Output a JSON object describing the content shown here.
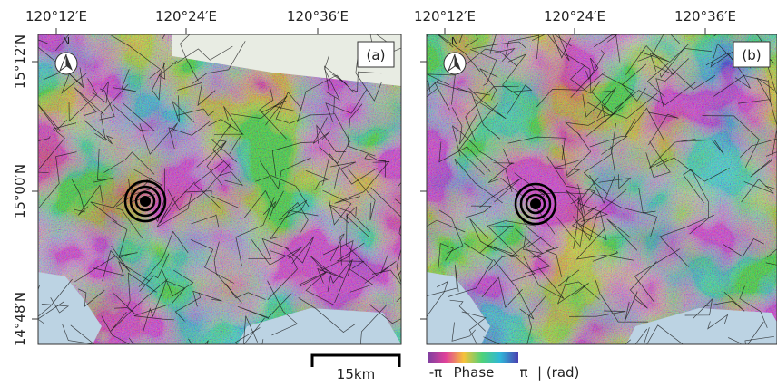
{
  "panels": [
    {
      "label": "(a)",
      "north": "N",
      "lon_labels": [
        "120°12′E",
        "120°24′E",
        "120°36′E"
      ],
      "lat_labels": [
        "15°12′N",
        "15°00′N",
        "14°48′N"
      ]
    },
    {
      "label": "(b)",
      "north": "N",
      "lon_labels": [
        "120°12′E",
        "120°24′E",
        "120°36′E"
      ]
    }
  ],
  "scale_bar": {
    "label": "15km"
  },
  "colorbar": {
    "min_label": "-π",
    "title": "Phase",
    "max_label": "π",
    "unit": "| (rad)"
  }
}
